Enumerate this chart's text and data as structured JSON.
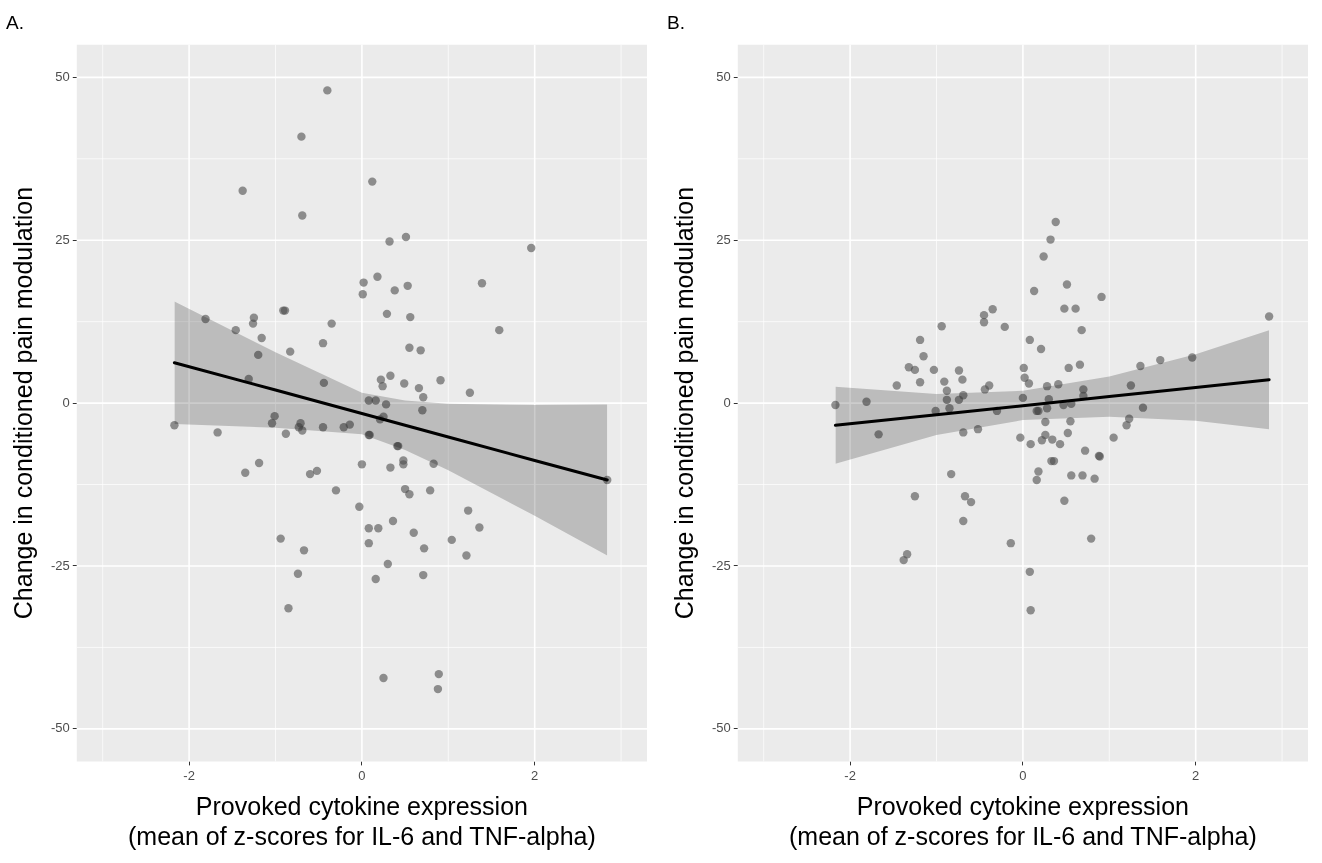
{
  "chart_data": [
    {
      "type": "scatter",
      "title": "A.",
      "xlabel": "Provoked cytokine expression\n(mean of z-scores for IL-6 and TNF-alpha)",
      "ylabel": "Change in conditioned pain modulation",
      "xlim": [
        -3.3,
        3.3
      ],
      "ylim": [
        -55,
        55
      ],
      "xticks": [
        -2,
        0,
        2
      ],
      "yticks": [
        -50,
        -25,
        0,
        25,
        50
      ],
      "grid": true,
      "series": [
        {
          "marker": "circle",
          "color": "#4d4d4d",
          "x": [
            -0.4,
            -0.7,
            -1.38,
            0.12,
            -0.69,
            0.32,
            0.51,
            1.96,
            0.18,
            0.02,
            0.01,
            0.38,
            0.53,
            1.39,
            -1.81,
            -1.25,
            -1.26,
            -0.91,
            -0.89,
            -0.35,
            0.29,
            0.56,
            -1.46,
            1.59,
            -1.16,
            -0.45,
            -1.2,
            -0.83,
            0.55,
            0.68,
            -1.31,
            -0.44,
            0.22,
            0.33,
            0.24,
            0.49,
            0.91,
            0.66,
            1.25,
            0.71,
            0.08,
            0.16,
            0.28,
            0.7,
            -2.17,
            -1.67,
            -1.01,
            -1.04,
            -0.88,
            -0.71,
            -0.73,
            -0.69,
            -0.45,
            -0.21,
            -0.14,
            0.25,
            0.21,
            0.08,
            0.09,
            0.41,
            0.42,
            -1.19,
            -1.35,
            -0.6,
            -0.52,
            0.0,
            0.33,
            0.48,
            0.48,
            0.83,
            -0.3,
            0.5,
            0.55,
            0.79,
            -0.03,
            1.23,
            0.36,
            0.08,
            0.19,
            0.6,
            1.36,
            -0.94,
            -0.67,
            0.08,
            0.72,
            1.04,
            1.21,
            0.3,
            -0.74,
            0.16,
            0.71,
            -0.85,
            0.25,
            0.89,
            0.88,
            2.84
          ],
          "values": [
            48.0,
            40.9,
            32.6,
            34.0,
            28.8,
            24.8,
            25.5,
            23.8,
            19.4,
            18.5,
            16.7,
            17.3,
            18.0,
            18.4,
            12.9,
            13.1,
            12.2,
            14.2,
            14.2,
            12.2,
            13.7,
            13.2,
            11.2,
            11.2,
            10.0,
            9.2,
            7.4,
            7.9,
            8.5,
            8.1,
            3.7,
            3.1,
            3.6,
            4.2,
            2.6,
            3.0,
            3.5,
            2.3,
            1.6,
            0.9,
            0.4,
            0.4,
            -0.2,
            -1.1,
            -3.4,
            -4.5,
            -2.0,
            -3.1,
            -4.7,
            -3.1,
            -3.7,
            -4.2,
            -3.7,
            -3.7,
            -3.3,
            -2.1,
            -2.5,
            -4.9,
            -4.9,
            -6.6,
            -6.6,
            -9.2,
            -10.7,
            -10.9,
            -10.4,
            -9.4,
            -9.9,
            -8.8,
            -9.4,
            -9.3,
            -13.4,
            -13.2,
            -14.0,
            -13.4,
            -15.9,
            -16.5,
            -18.1,
            -19.2,
            -19.2,
            -19.9,
            -19.1,
            -20.8,
            -22.6,
            -21.5,
            -22.3,
            -21.0,
            -23.4,
            -24.7,
            -26.2,
            -27.0,
            -26.4,
            -31.5,
            -42.2,
            -41.6,
            -43.9,
            -11.8
          ]
        },
        {
          "type": "line",
          "color": "#000000",
          "x": [
            -2.17,
            -1,
            0,
            0.5,
            1,
            2,
            2.84
          ],
          "values": [
            6.2,
            2.0,
            -1.6,
            -3.4,
            -5.2,
            -8.8,
            -11.8
          ],
          "lower": [
            -3.2,
            -3.8,
            -4.8,
            -7.2,
            -10.3,
            -17.3,
            -23.4
          ],
          "upper": [
            15.6,
            7.8,
            1.6,
            0.4,
            -0.1,
            -0.3,
            -0.2
          ]
        }
      ]
    },
    {
      "type": "scatter",
      "title": "B.",
      "xlabel": "Provoked cytokine expression\n(mean of z-scores for IL-6 and TNF-alpha)",
      "ylabel": "Change in conditioned pain modulation",
      "xlim": [
        -3.3,
        3.3
      ],
      "ylim": [
        -55,
        55
      ],
      "xticks": [
        -2,
        0,
        2
      ],
      "yticks": [
        -50,
        -25,
        0,
        25,
        50
      ],
      "grid": true,
      "series": [
        {
          "marker": "circle",
          "color": "#4d4d4d",
          "x": [
            0.38,
            0.32,
            0.24,
            0.51,
            0.13,
            0.91,
            -0.35,
            -0.45,
            -0.45,
            0.48,
            0.61,
            -0.94,
            -0.21,
            0.68,
            2.85,
            -1.19,
            0.08,
            0.21,
            -1.15,
            -1.32,
            -1.25,
            -1.03,
            -0.74,
            0.01,
            0.53,
            0.66,
            1.36,
            1.59,
            1.96,
            -1.19,
            -0.91,
            -0.7,
            0.02,
            0.07,
            -1.46,
            -0.39,
            -0.44,
            0.28,
            0.41,
            0.7,
            1.25,
            -0.88,
            -0.69,
            -0.88,
            -0.74,
            0.0,
            0.3,
            0.7,
            -1.81,
            -2.17,
            -1.01,
            -0.85,
            -0.3,
            0.16,
            0.18,
            0.28,
            0.47,
            0.56,
            1.39,
            -1.67,
            -0.69,
            -0.52,
            0.26,
            0.55,
            0.26,
            0.52,
            -0.03,
            0.22,
            0.34,
            0.09,
            0.43,
            1.05,
            1.2,
            1.23,
            0.72,
            0.33,
            0.36,
            0.88,
            0.89,
            -0.83,
            0.18,
            0.16,
            0.56,
            0.69,
            0.83,
            -1.25,
            -0.67,
            -0.6,
            0.48,
            -0.69,
            -0.14,
            0.79,
            -1.34,
            -1.38,
            0.08,
            0.09
          ],
          "values": [
            27.8,
            25.1,
            22.5,
            18.2,
            17.2,
            16.3,
            14.4,
            13.5,
            12.4,
            14.5,
            14.5,
            11.8,
            11.7,
            11.2,
            13.3,
            9.7,
            9.7,
            8.3,
            7.2,
            5.5,
            5.1,
            5.1,
            5.0,
            5.4,
            5.4,
            5.9,
            5.7,
            6.6,
            7.0,
            3.2,
            3.3,
            3.6,
            3.9,
            3.0,
            2.7,
            2.7,
            2.1,
            2.6,
            2.9,
            2.1,
            2.7,
            1.9,
            1.2,
            0.5,
            0.5,
            0.8,
            0.6,
            1.1,
            0.2,
            -0.3,
            -1.2,
            -0.8,
            -1.2,
            -1.2,
            -1.2,
            -0.8,
            -0.3,
            -0.1,
            -0.7,
            -4.8,
            -4.5,
            -4.0,
            -2.9,
            -2.8,
            -4.9,
            -4.6,
            -5.3,
            -5.7,
            -5.6,
            -6.3,
            -6.3,
            -5.3,
            -3.4,
            -2.4,
            -7.3,
            -8.9,
            -8.9,
            -8.1,
            -8.2,
            -10.9,
            -10.5,
            -11.8,
            -11.1,
            -11.1,
            -11.6,
            -14.3,
            -14.3,
            -15.2,
            -15.0,
            -18.1,
            -21.5,
            -20.8,
            -23.2,
            -24.1,
            -25.9,
            -31.8
          ]
        },
        {
          "type": "line",
          "color": "#000000",
          "x": [
            -2.17,
            -1,
            0,
            1,
            2,
            2.85
          ],
          "values": [
            -3.4,
            -1.8,
            -0.4,
            1.0,
            2.4,
            3.6
          ],
          "lower": [
            -9.3,
            -4.9,
            -2.6,
            -2.1,
            -2.7,
            -4.0
          ],
          "upper": [
            2.5,
            1.4,
            1.9,
            4.1,
            7.5,
            11.2
          ]
        }
      ]
    }
  ]
}
